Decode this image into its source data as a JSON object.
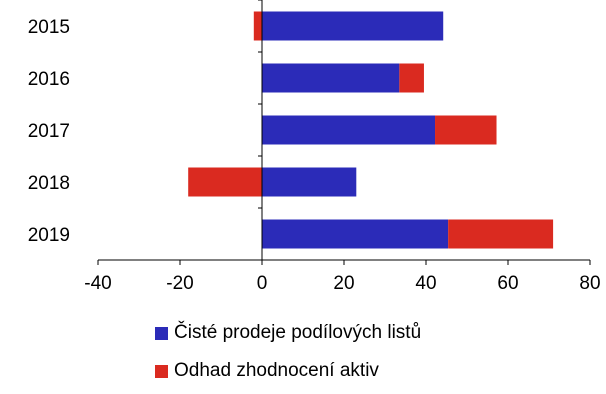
{
  "chart_data": {
    "type": "bar",
    "orientation": "horizontal",
    "stacked": true,
    "categories": [
      "2015",
      "2016",
      "2017",
      "2018",
      "2019"
    ],
    "series": [
      {
        "name": "Čisté prodeje podílových listů",
        "color": "#2B2BB8",
        "values": [
          44.2,
          33.5,
          42.2,
          23.0,
          45.4
        ]
      },
      {
        "name": "Odhad zhodnocení aktiv",
        "color": "#DA2A20",
        "values": [
          -2.0,
          6.0,
          15.0,
          -18.0,
          25.6
        ]
      }
    ],
    "xlim": [
      -40,
      80
    ],
    "x_ticks": [
      "-40",
      "-20",
      "0",
      "20",
      "40",
      "60",
      "80"
    ],
    "grid": false,
    "legend_position": "bottom"
  }
}
